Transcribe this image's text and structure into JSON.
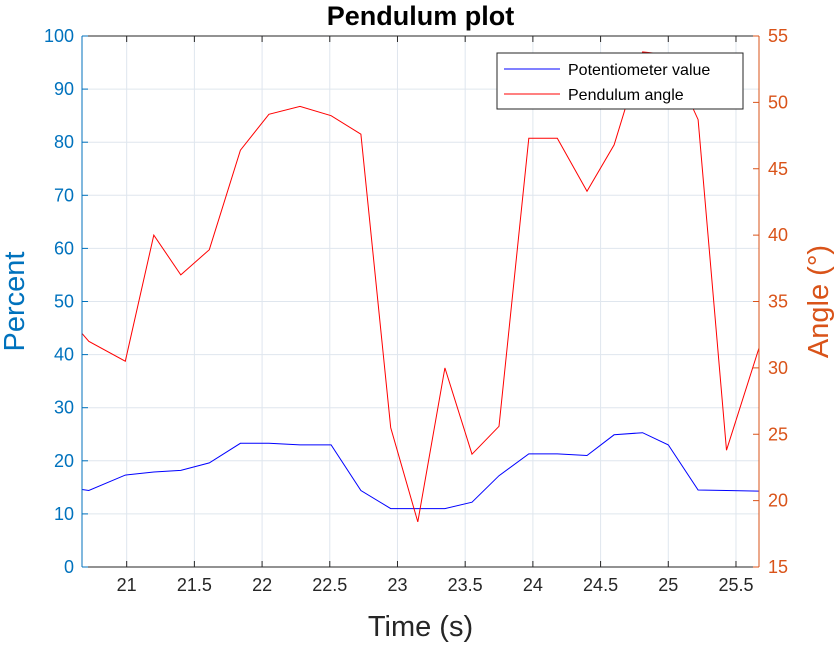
{
  "chart_data": {
    "type": "line",
    "title": "Pendulum plot",
    "xlabel": "Time (s)",
    "ylabel_left": "Percent",
    "ylabel_right": "Angle (°)",
    "xlim": [
      20.67,
      25.67
    ],
    "xticks": [
      21,
      21.5,
      22,
      22.5,
      23,
      23.5,
      24,
      24.5,
      25,
      25.5
    ],
    "ylim_left": [
      0,
      100
    ],
    "yticks_left": [
      0,
      10,
      20,
      30,
      40,
      50,
      60,
      70,
      80,
      90,
      100
    ],
    "ylim_right": [
      15,
      55
    ],
    "yticks_right": [
      15,
      20,
      25,
      30,
      35,
      40,
      45,
      50,
      55
    ],
    "grid": true,
    "legend_position": "top-right",
    "colors": {
      "left_axis": "#0072BD",
      "right_axis": "#D95319"
    },
    "series": [
      {
        "name": "Potentiometer value",
        "axis": "left",
        "color": "#0000FF",
        "x": [
          20.67,
          20.72,
          20.99,
          21.2,
          21.4,
          21.61,
          21.84,
          22.05,
          22.28,
          22.51,
          22.73,
          22.95,
          23.15,
          23.35,
          23.55,
          23.75,
          23.97,
          24.18,
          24.4,
          24.6,
          24.81,
          25.0,
          25.22,
          25.43,
          25.67
        ],
        "y": [
          14.6,
          14.4,
          17.3,
          17.9,
          18.2,
          19.6,
          23.3,
          23.3,
          23.0,
          23.0,
          14.4,
          11.0,
          11.0,
          11.0,
          12.2,
          17.2,
          21.3,
          21.3,
          21.0,
          24.9,
          25.3,
          23.0,
          14.5,
          14.4,
          14.3
        ]
      },
      {
        "name": "Pendulum angle",
        "axis": "right",
        "color": "#FF0000",
        "x": [
          20.67,
          20.72,
          20.99,
          21.2,
          21.4,
          21.61,
          21.84,
          22.05,
          22.28,
          22.51,
          22.73,
          22.95,
          23.15,
          23.35,
          23.55,
          23.75,
          23.97,
          24.18,
          24.4,
          24.6,
          24.81,
          25.0,
          25.22,
          25.43,
          25.67
        ],
        "y": [
          32.6,
          32.0,
          30.5,
          40.0,
          37.0,
          38.9,
          46.4,
          49.1,
          49.7,
          49.0,
          47.6,
          25.5,
          18.4,
          30.0,
          23.5,
          25.6,
          47.3,
          47.3,
          43.3,
          46.8,
          53.8,
          53.6,
          48.7,
          23.8,
          31.5
        ]
      }
    ]
  }
}
